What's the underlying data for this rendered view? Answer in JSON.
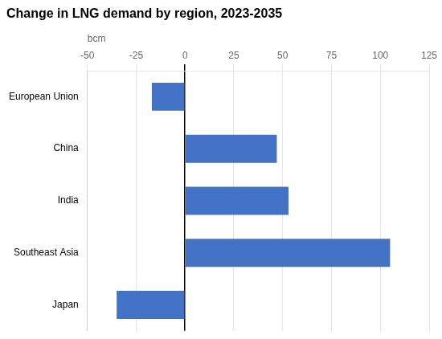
{
  "chart_data": {
    "type": "bar",
    "orientation": "horizontal",
    "title": "Change in LNG demand by region, 2023-2035",
    "xlabel": "bcm",
    "categories": [
      "European Union",
      "China",
      "India",
      "Southeast Asia",
      "Japan"
    ],
    "values": [
      -17,
      47,
      53,
      105,
      -35
    ],
    "color": "#4472C4",
    "xlim": [
      -50,
      125
    ],
    "xticks": [
      -50,
      -25,
      0,
      25,
      50,
      75,
      100,
      125
    ],
    "grid": true
  }
}
